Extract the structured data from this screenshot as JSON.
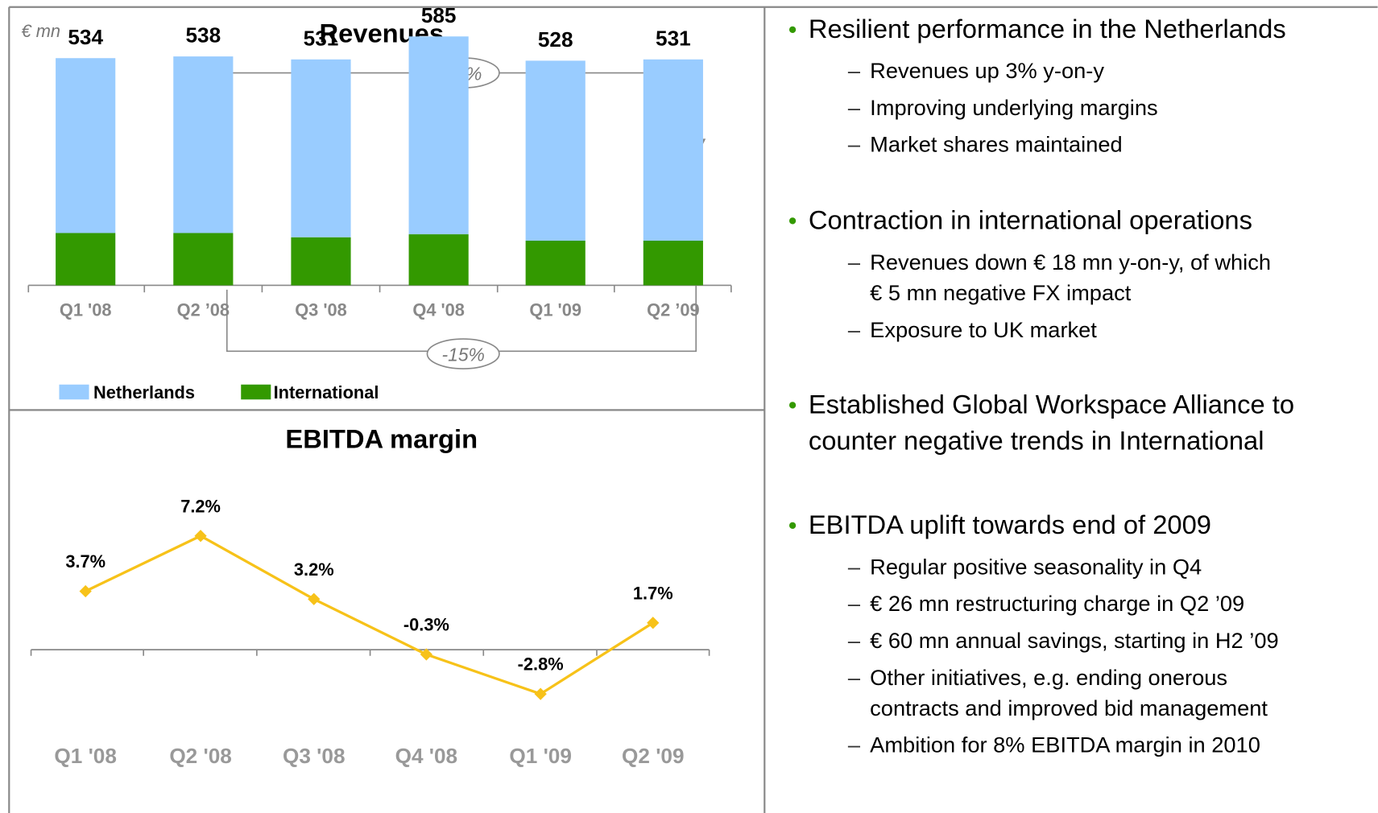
{
  "chart_data": [
    {
      "type": "bar",
      "title": "Revenues",
      "unit_label": "€ mn",
      "categories": [
        "Q1 '08",
        "Q2 ’08",
        "Q3 '08",
        "Q4 '08",
        "Q1 '09",
        "Q2 ’09"
      ],
      "series": [
        {
          "name": "International",
          "color": "#339900",
          "values": [
            123,
            123,
            113,
            120,
            105,
            105
          ]
        },
        {
          "name": "Netherlands",
          "color": "#99ccff",
          "values": [
            411,
            415,
            418,
            465,
            423,
            426
          ]
        }
      ],
      "totals": [
        534,
        538,
        531,
        585,
        528,
        531
      ],
      "annotations": [
        "+3%",
        "-15%"
      ],
      "ylim": [
        0,
        650
      ]
    },
    {
      "type": "line",
      "title": "EBITDA margin",
      "categories": [
        "Q1 '08",
        "Q2 '08",
        "Q3 '08",
        "Q4 '08",
        "Q1 '09",
        "Q2 '09"
      ],
      "series": [
        {
          "name": "EBITDA margin",
          "color": "#f7c219",
          "values": [
            3.7,
            7.2,
            3.2,
            -0.3,
            -2.8,
            1.7
          ],
          "value_labels": [
            "3.7%",
            "7.2%",
            "3.2%",
            "-0.3%",
            "-2.8%",
            "1.7%"
          ]
        }
      ],
      "ylim": [
        -5,
        10
      ]
    }
  ],
  "bullets": [
    {
      "text": [
        "Resilient performance in the Netherlands"
      ],
      "sub": [
        [
          "Revenues up 3% y-on-y"
        ],
        [
          "Improving underlying margins"
        ],
        [
          "Market shares maintained"
        ]
      ]
    },
    {
      "text": [
        "Contraction in international operations"
      ],
      "sub": [
        [
          "Revenues down € 18 mn y-on-y, of which",
          "€ 5 mn negative FX impact"
        ],
        [
          "Exposure to UK market"
        ]
      ]
    },
    {
      "text": [
        "Established Global Workspace Alliance to",
        "counter negative trends in International"
      ],
      "sub": []
    },
    {
      "text": [
        "EBITDA uplift towards end of 2009"
      ],
      "sub": [
        [
          "Regular positive seasonality in Q4"
        ],
        [
          "€ 26 mn restructuring charge in Q2 ’09"
        ],
        [
          "€ 60 mn annual savings, starting in H2 ’09"
        ],
        [
          "Other initiatives, e.g. ending onerous",
          "contracts and improved bid management"
        ],
        [
          "Ambition for 8% EBITDA margin in 2010"
        ]
      ]
    }
  ]
}
